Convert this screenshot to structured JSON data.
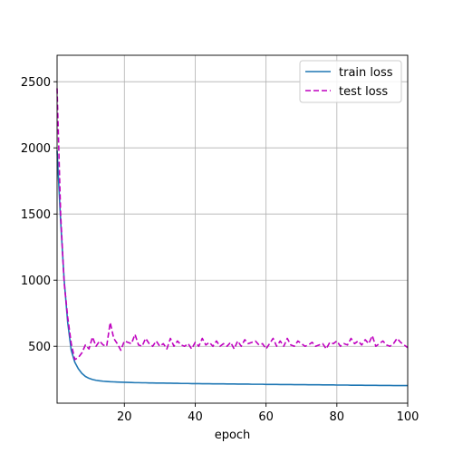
{
  "chart_data": {
    "type": "line",
    "title": "",
    "xlabel": "epoch",
    "ylabel": "",
    "xlim": [
      1,
      100
    ],
    "ylim": [
      70,
      2700
    ],
    "xticks": [
      20,
      40,
      60,
      80,
      100
    ],
    "yticks": [
      500,
      1000,
      1500,
      2000,
      2500
    ],
    "xtick_labels": [
      "20",
      "40",
      "60",
      "80",
      "100"
    ],
    "ytick_labels": [
      "500",
      "1000",
      "1500",
      "2000",
      "2500"
    ],
    "grid": true,
    "legend_position": "top-right",
    "x": [
      1,
      2,
      3,
      4,
      5,
      6,
      7,
      8,
      9,
      10,
      11,
      12,
      13,
      14,
      15,
      16,
      17,
      18,
      19,
      20,
      21,
      22,
      23,
      24,
      25,
      26,
      27,
      28,
      29,
      30,
      31,
      32,
      33,
      34,
      35,
      36,
      37,
      38,
      39,
      40,
      41,
      42,
      43,
      44,
      45,
      46,
      47,
      48,
      49,
      50,
      51,
      52,
      53,
      54,
      55,
      56,
      57,
      58,
      59,
      60,
      61,
      62,
      63,
      64,
      65,
      66,
      67,
      68,
      69,
      70,
      71,
      72,
      73,
      74,
      75,
      76,
      77,
      78,
      79,
      80,
      81,
      82,
      83,
      84,
      85,
      86,
      87,
      88,
      89,
      90,
      91,
      92,
      93,
      94,
      95,
      96,
      97,
      98,
      99,
      100
    ],
    "series": [
      {
        "name": "train loss",
        "color": "#1f77b4",
        "dash": "solid",
        "values": [
          1980,
          1450,
          1000,
          680,
          470,
          380,
          330,
          295,
          272,
          258,
          249,
          243,
          239,
          236,
          234,
          232,
          231,
          230,
          229,
          228,
          227,
          226,
          225,
          225,
          224,
          224,
          223,
          223,
          222,
          222,
          222,
          221,
          221,
          220,
          220,
          219,
          219,
          219,
          218,
          218,
          218,
          217,
          217,
          217,
          216,
          216,
          216,
          216,
          215,
          215,
          215,
          214,
          214,
          214,
          214,
          213,
          213,
          213,
          213,
          212,
          212,
          212,
          212,
          211,
          211,
          211,
          211,
          210,
          210,
          210,
          210,
          209,
          209,
          209,
          209,
          208,
          208,
          208,
          208,
          207,
          207,
          207,
          207,
          206,
          206,
          206,
          206,
          205,
          205,
          205,
          205,
          204,
          204,
          204,
          204,
          203,
          203,
          203,
          203,
          203
        ]
      },
      {
        "name": "test loss",
        "color": "#bf00bf",
        "dash": "dashed",
        "values": [
          2450,
          1500,
          980,
          720,
          520,
          400,
          415,
          450,
          510,
          480,
          570,
          500,
          540,
          510,
          500,
          680,
          560,
          520,
          470,
          540,
          530,
          520,
          590,
          510,
          500,
          560,
          520,
          500,
          540,
          500,
          520,
          480,
          560,
          500,
          540,
          510,
          500,
          520,
          480,
          530,
          500,
          560,
          510,
          530,
          500,
          540,
          500,
          520,
          500,
          530,
          480,
          540,
          500,
          550,
          520,
          530,
          540,
          510,
          520,
          480,
          520,
          560,
          500,
          540,
          500,
          560,
          510,
          500,
          540,
          520,
          500,
          510,
          530,
          500,
          510,
          520,
          480,
          530,
          520,
          540,
          500,
          520,
          510,
          560,
          520,
          540,
          510,
          550,
          520,
          580,
          500,
          520,
          540,
          510,
          500,
          520,
          560,
          530,
          510,
          490
        ]
      }
    ]
  }
}
